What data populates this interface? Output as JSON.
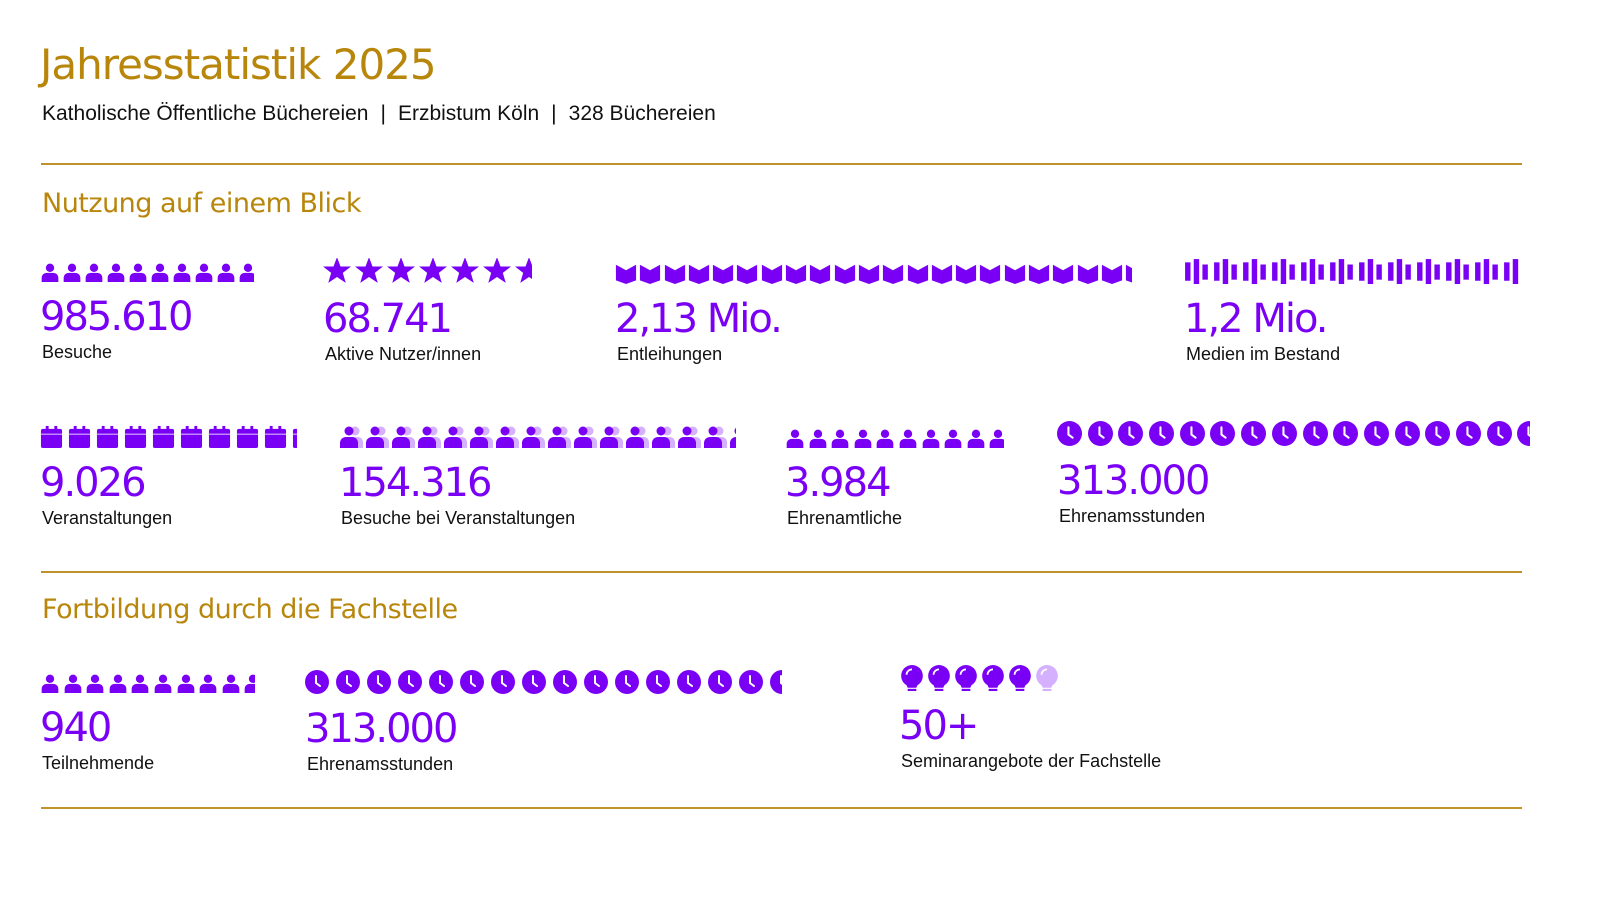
{
  "header": {
    "title": "Jahresstatistik 2025",
    "subtitle_parts": [
      "Katholische Öffentliche Büchereien",
      "Erzbistum Köln",
      "328 Büchereien"
    ],
    "separator": "|"
  },
  "colors": {
    "accent": "#b8860b",
    "icon": "#7a00f5",
    "icon_light": "#d4b0ff",
    "text": "#111111"
  },
  "sections": [
    {
      "title": "Nutzung auf einem Blick",
      "stats": [
        {
          "id": "besuche",
          "value": "985.610",
          "label": "Besuche",
          "icon": "person-icon",
          "icon_count": 9.8
        },
        {
          "id": "nutzer",
          "value": "68.741",
          "label": "Aktive Nutzer/innen",
          "icon": "star-icon",
          "icon_count": 6.6
        },
        {
          "id": "entleihungen",
          "value": "2,13 Mio.",
          "label": "Entleihungen",
          "icon": "book-icon",
          "icon_count": 21.3
        },
        {
          "id": "medien",
          "value": "1,2 Mio.",
          "label": "Medien im Bestand",
          "icon": "media-bars-icon",
          "icon_count": 11.6
        },
        {
          "id": "veranstaltungen",
          "value": "9.026",
          "label": "Veranstaltungen",
          "icon": "calendar-icon",
          "icon_count": 9.2
        },
        {
          "id": "besuche-veranstaltungen",
          "value": "154.316",
          "label": "Besuche bei Veranstaltungen",
          "icon": "group-icon",
          "icon_count": 15.3
        },
        {
          "id": "ehrenamtliche",
          "value": "3.984",
          "label": "Ehrenamtliche",
          "icon": "person-icon",
          "icon_count": 9.8
        },
        {
          "id": "ehrenamtsstunden",
          "value": "313.000",
          "label": "Ehrenamsstunden",
          "icon": "clock-icon",
          "icon_count": 15.5
        }
      ]
    },
    {
      "title": "Fortbildung durch die Fachstelle",
      "stats": [
        {
          "id": "teilnehmende",
          "value": "940",
          "label": "Teilnehmende",
          "icon": "person-icon",
          "icon_count": 9.6
        },
        {
          "id": "stunden2",
          "value": "313.000",
          "label": "Ehrenamsstunden",
          "icon": "clock-icon",
          "icon_count": 15.5
        },
        {
          "id": "seminare",
          "value": "50+",
          "label": "Seminarangebote der Fachstelle",
          "icon": "lightbulb-icon",
          "icon_count": 5,
          "icon_light_count": 1
        }
      ]
    }
  ]
}
